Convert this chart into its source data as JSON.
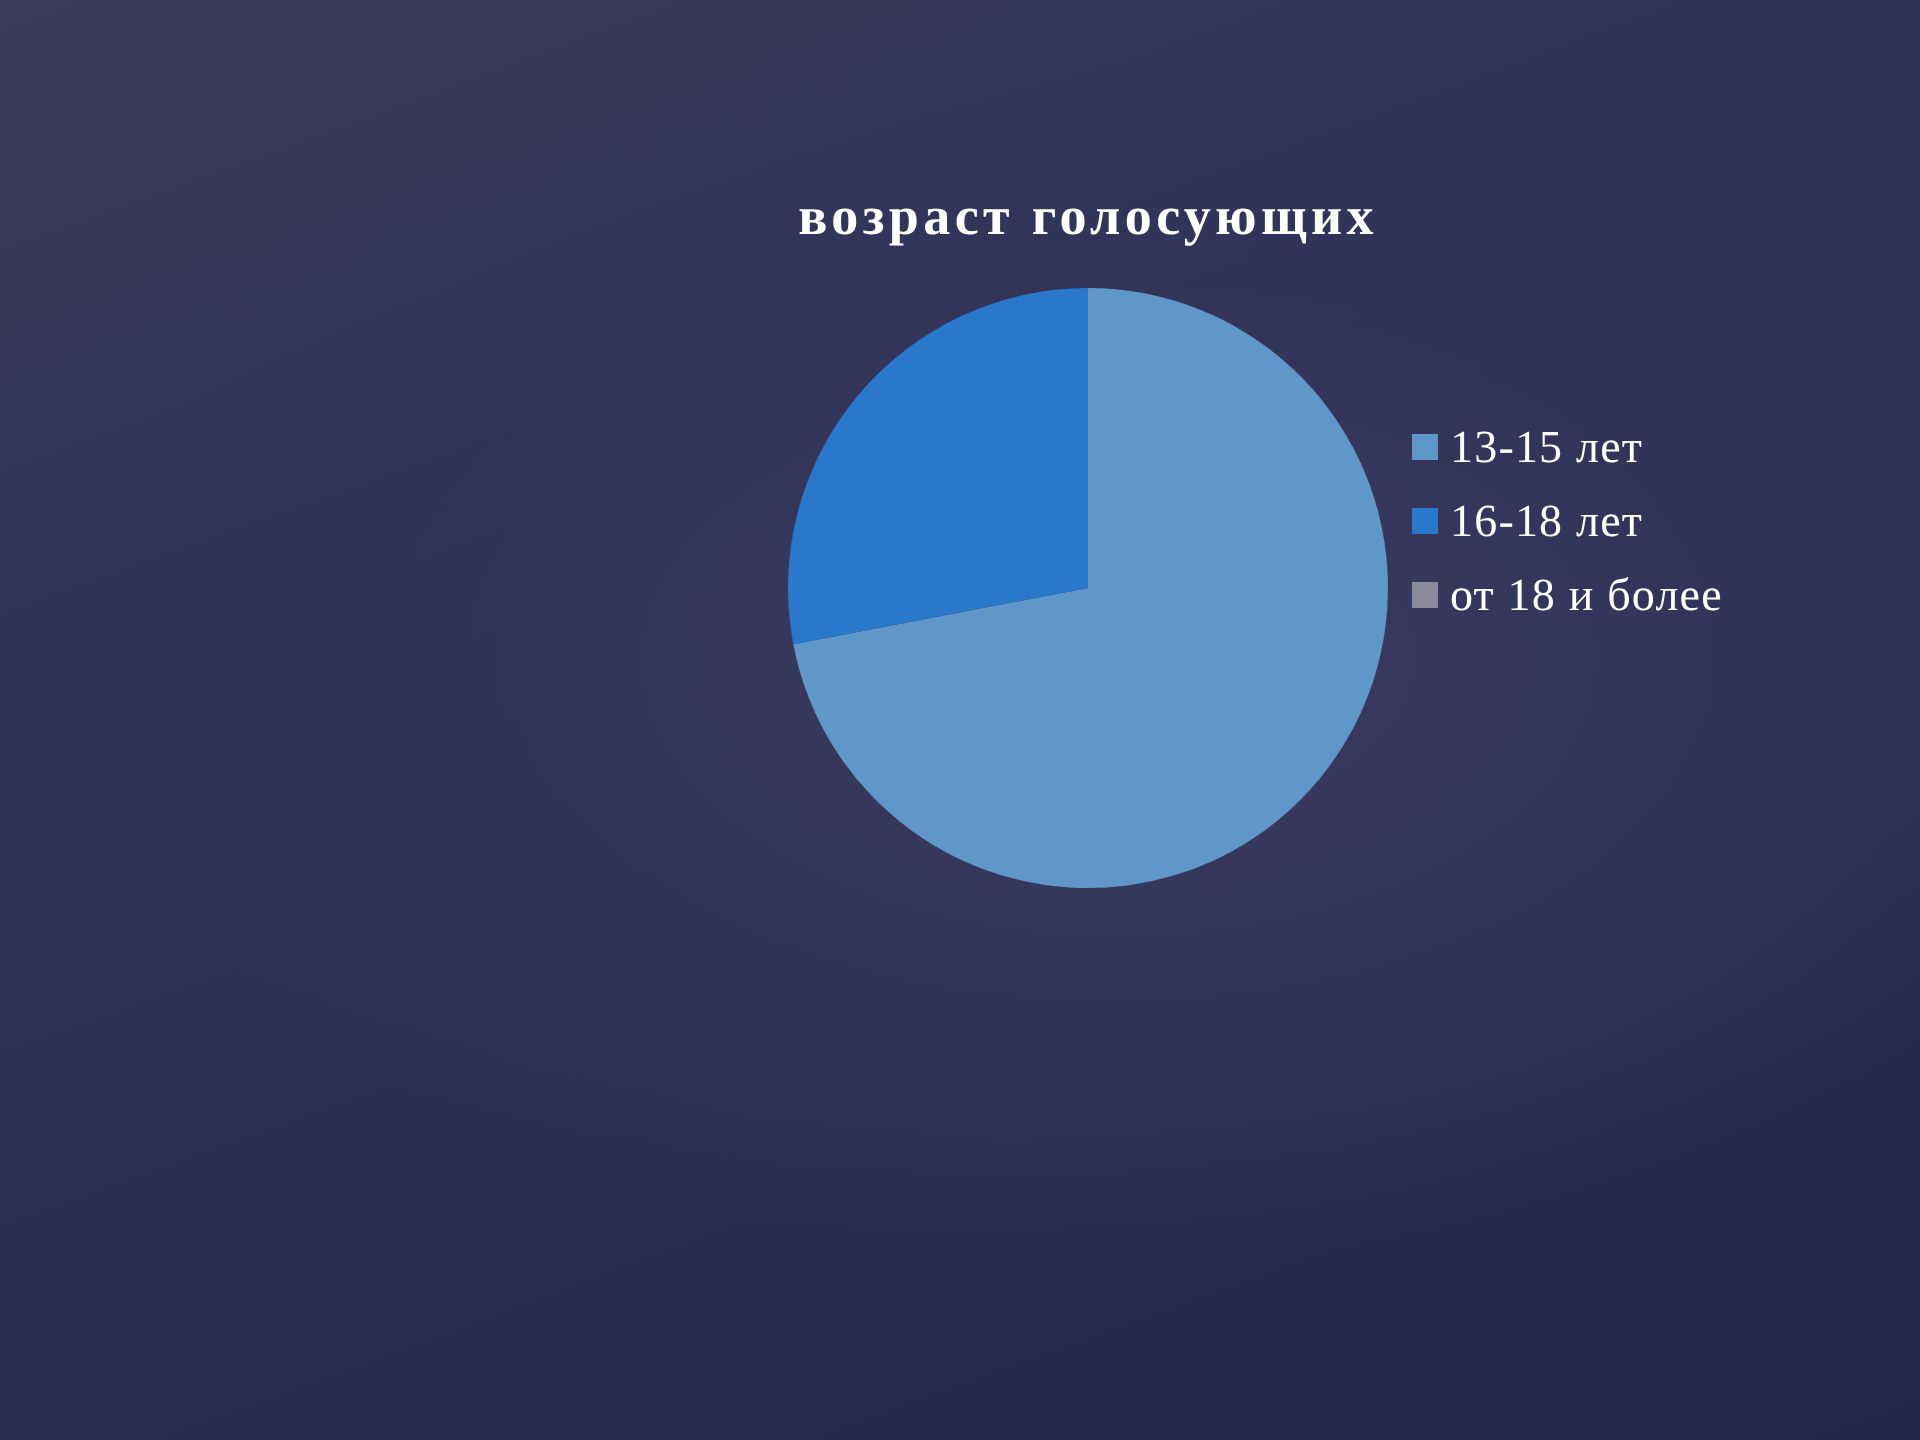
{
  "chart_data": {
    "type": "pie",
    "title": "возраст голосующих",
    "categories": [
      "13-15 лет",
      "16-18 лет",
      "от 18 и более"
    ],
    "values": [
      72,
      28,
      0
    ],
    "colors": [
      "#5f97c8",
      "#2a78cc",
      "#8a8a9c"
    ],
    "legend": "right"
  }
}
